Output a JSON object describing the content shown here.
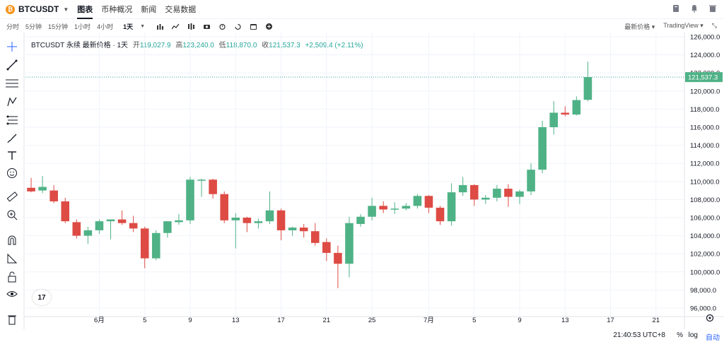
{
  "header": {
    "coin_glyph": "₿",
    "symbol": "BTCUSDT",
    "tabs": [
      "图表",
      "币种概况",
      "新闻",
      "交易数据"
    ]
  },
  "intervals": [
    "分时",
    "5分钟",
    "15分钟",
    "1小时",
    "4小时",
    "1天"
  ],
  "toolbar_right": {
    "price_type": "最新价格",
    "provider": "TradingView"
  },
  "legend": {
    "title": "BTCUSDT 永续 最新价格 · 1天",
    "open_label": "开",
    "open": "119,027.9",
    "high_label": "高",
    "high": "123,240.0",
    "low_label": "低",
    "low": "118,870.0",
    "close_label": "收",
    "close": "121,537.3",
    "change": "+2,509.4 (+2.11%)"
  },
  "bottom": {
    "time": "21:40:53 UTC+8",
    "percent": "%",
    "log": "log",
    "auto": "自动"
  },
  "tv_logo": "17",
  "colors": {
    "up": "#26a69a",
    "down": "#ef5350",
    "up_body": "#4fb286",
    "down_body": "#dd4b44"
  },
  "chart_data": {
    "type": "candlestick",
    "symbol": "BTCUSDT",
    "interval": "1D",
    "ylim": [
      95000,
      127000
    ],
    "y_ticks": [
      96000,
      98000,
      100000,
      102000,
      104000,
      106000,
      108000,
      110000,
      112000,
      114000,
      116000,
      118000,
      120000,
      122000,
      124000,
      126000
    ],
    "y_tick_labels": [
      "96,000.0",
      "98,000.0",
      "100,000.0",
      "102,000.0",
      "104,000.0",
      "106,000.0",
      "108,000.0",
      "110,000.0",
      "112,000.0",
      "114,000.0",
      "116,000.0",
      "118,000.0",
      "120,000.0",
      "122,000.0",
      "124,000.0",
      "126,000.0"
    ],
    "x_labels": [
      {
        "index": 6,
        "label": "6月"
      },
      {
        "index": 10,
        "label": "5"
      },
      {
        "index": 14,
        "label": "9"
      },
      {
        "index": 18,
        "label": "13"
      },
      {
        "index": 22,
        "label": "17"
      },
      {
        "index": 26,
        "label": "21"
      },
      {
        "index": 30,
        "label": "25"
      },
      {
        "index": 35,
        "label": "7月"
      },
      {
        "index": 39,
        "label": "5"
      },
      {
        "index": 43,
        "label": "9"
      },
      {
        "index": 47,
        "label": "13"
      },
      {
        "index": 51,
        "label": "17"
      },
      {
        "index": 55,
        "label": "21"
      }
    ],
    "total_slots": 58,
    "last_price": 121537.3,
    "last_price_label": "121,537.3",
    "candles": [
      {
        "o": 109300,
        "h": 110400,
        "l": 108800,
        "c": 108900
      },
      {
        "o": 109000,
        "h": 110600,
        "l": 108700,
        "c": 109400
      },
      {
        "o": 109000,
        "h": 109600,
        "l": 107600,
        "c": 107800
      },
      {
        "o": 107800,
        "h": 108200,
        "l": 105400,
        "c": 105600
      },
      {
        "o": 105500,
        "h": 105800,
        "l": 103700,
        "c": 104000
      },
      {
        "o": 104000,
        "h": 105000,
        "l": 103100,
        "c": 104600
      },
      {
        "o": 104600,
        "h": 105800,
        "l": 104200,
        "c": 105600
      },
      {
        "o": 105600,
        "h": 105800,
        "l": 103600,
        "c": 105800
      },
      {
        "o": 105800,
        "h": 106800,
        "l": 105200,
        "c": 105400
      },
      {
        "o": 105400,
        "h": 106200,
        "l": 104400,
        "c": 104800
      },
      {
        "o": 104800,
        "h": 105000,
        "l": 100400,
        "c": 101500
      },
      {
        "o": 101500,
        "h": 104600,
        "l": 101300,
        "c": 104300
      },
      {
        "o": 104300,
        "h": 105600,
        "l": 103800,
        "c": 105600
      },
      {
        "o": 105500,
        "h": 106400,
        "l": 105200,
        "c": 105700
      },
      {
        "o": 105700,
        "h": 110500,
        "l": 105300,
        "c": 110200
      },
      {
        "o": 110200,
        "h": 110300,
        "l": 108300,
        "c": 110200
      },
      {
        "o": 110200,
        "h": 110300,
        "l": 108100,
        "c": 108600
      },
      {
        "o": 108600,
        "h": 108900,
        "l": 105400,
        "c": 105700
      },
      {
        "o": 105700,
        "h": 106500,
        "l": 102600,
        "c": 106000
      },
      {
        "o": 106000,
        "h": 106100,
        "l": 104400,
        "c": 105400
      },
      {
        "o": 105400,
        "h": 105900,
        "l": 104800,
        "c": 105600
      },
      {
        "o": 105600,
        "h": 108900,
        "l": 105300,
        "c": 106800
      },
      {
        "o": 106800,
        "h": 107000,
        "l": 103500,
        "c": 104600
      },
      {
        "o": 104600,
        "h": 105000,
        "l": 104000,
        "c": 104900
      },
      {
        "o": 104900,
        "h": 105300,
        "l": 103800,
        "c": 104500
      },
      {
        "o": 104500,
        "h": 105400,
        "l": 102900,
        "c": 103200
      },
      {
        "o": 103300,
        "h": 103700,
        "l": 101200,
        "c": 102100
      },
      {
        "o": 102100,
        "h": 102900,
        "l": 98200,
        "c": 100900
      },
      {
        "o": 100900,
        "h": 106100,
        "l": 99400,
        "c": 105400
      },
      {
        "o": 105300,
        "h": 106400,
        "l": 105000,
        "c": 106100
      },
      {
        "o": 106100,
        "h": 108200,
        "l": 105700,
        "c": 107300
      },
      {
        "o": 107300,
        "h": 107800,
        "l": 106500,
        "c": 106900
      },
      {
        "o": 106900,
        "h": 107700,
        "l": 106400,
        "c": 107000
      },
      {
        "o": 107000,
        "h": 107600,
        "l": 106800,
        "c": 107300
      },
      {
        "o": 107300,
        "h": 108600,
        "l": 107000,
        "c": 108400
      },
      {
        "o": 108400,
        "h": 108500,
        "l": 106500,
        "c": 107100
      },
      {
        "o": 107100,
        "h": 107300,
        "l": 105200,
        "c": 105600
      },
      {
        "o": 105600,
        "h": 109800,
        "l": 105100,
        "c": 108800
      },
      {
        "o": 108800,
        "h": 110500,
        "l": 108400,
        "c": 109600
      },
      {
        "o": 109600,
        "h": 109700,
        "l": 107300,
        "c": 108000
      },
      {
        "o": 108000,
        "h": 108500,
        "l": 107500,
        "c": 108200
      },
      {
        "o": 108200,
        "h": 109600,
        "l": 107800,
        "c": 109200
      },
      {
        "o": 109200,
        "h": 109700,
        "l": 107200,
        "c": 108300
      },
      {
        "o": 108300,
        "h": 109100,
        "l": 107500,
        "c": 108900
      },
      {
        "o": 108900,
        "h": 112000,
        "l": 108500,
        "c": 111300
      },
      {
        "o": 111300,
        "h": 116700,
        "l": 110900,
        "c": 116000
      },
      {
        "o": 116000,
        "h": 118900,
        "l": 115200,
        "c": 117600
      },
      {
        "o": 117600,
        "h": 118300,
        "l": 117200,
        "c": 117400
      },
      {
        "o": 117400,
        "h": 119400,
        "l": 117300,
        "c": 119000
      },
      {
        "o": 119027.9,
        "h": 123240,
        "l": 118870,
        "c": 121537.3
      }
    ]
  }
}
